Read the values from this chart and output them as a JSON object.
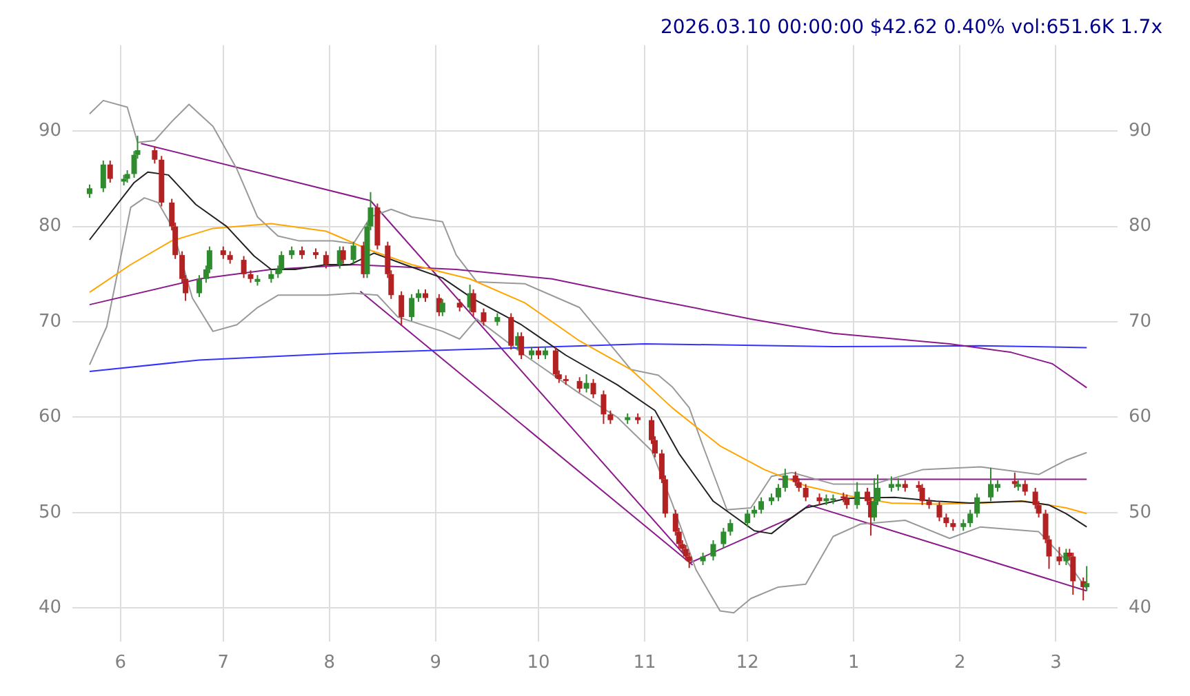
{
  "chart_data": {
    "type": "candlestick",
    "title": "2026.03.10 00:00:00 $42.62 0.40% vol:651.6K 1.7x",
    "x": [
      "2025-05-23",
      "2025-05-27",
      "2025-05-29",
      "2025-06-02",
      "2025-06-03",
      "2025-06-05",
      "2025-06-06",
      "2025-06-11",
      "2025-06-13",
      "2025-06-16",
      "2025-06-17",
      "2025-06-19",
      "2025-06-20",
      "2025-06-24",
      "2025-06-26",
      "2025-06-27",
      "2025-07-01",
      "2025-07-03",
      "2025-07-07",
      "2025-07-09",
      "2025-07-11",
      "2025-07-15",
      "2025-07-17",
      "2025-07-18",
      "2025-07-21",
      "2025-07-24",
      "2025-07-28",
      "2025-07-31",
      "2025-08-04",
      "2025-08-05",
      "2025-08-08",
      "2025-08-11",
      "2025-08-12",
      "2025-08-13",
      "2025-08-15",
      "2025-08-18",
      "2025-08-19",
      "2025-08-22",
      "2025-08-25",
      "2025-08-27",
      "2025-08-29",
      "2025-09-02",
      "2025-09-03",
      "2025-09-08",
      "2025-09-11",
      "2025-09-12",
      "2025-09-15",
      "2025-09-19",
      "2025-09-23",
      "2025-09-25",
      "2025-09-26",
      "2025-09-29",
      "2025-10-01",
      "2025-10-03",
      "2025-10-06",
      "2025-10-07",
      "2025-10-09",
      "2025-10-13",
      "2025-10-15",
      "2025-10-17",
      "2025-10-20",
      "2025-10-22",
      "2025-10-27",
      "2025-10-30",
      "2025-11-03",
      "2025-11-04",
      "2025-11-06",
      "2025-11-07",
      "2025-11-10",
      "2025-11-11",
      "2025-11-12",
      "2025-11-13",
      "2025-11-14",
      "2025-11-18",
      "2025-11-21",
      "2025-11-24",
      "2025-11-26",
      "2025-12-01",
      "2025-12-03",
      "2025-12-05",
      "2025-12-08",
      "2025-12-10",
      "2025-12-12",
      "2025-12-15",
      "2025-12-16",
      "2025-12-18",
      "2025-12-22",
      "2025-12-24",
      "2025-12-26",
      "2025-12-29",
      "2025-12-30",
      "2026-01-02",
      "2026-01-05",
      "2026-01-06",
      "2026-01-07",
      "2026-01-08",
      "2026-01-12",
      "2026-01-14",
      "2026-01-16",
      "2026-01-20",
      "2026-01-21",
      "2026-01-23",
      "2026-01-26",
      "2026-01-28",
      "2026-01-30",
      "2026-02-02",
      "2026-02-04",
      "2026-02-06",
      "2026-02-10",
      "2026-02-12",
      "2026-02-17",
      "2026-02-18",
      "2026-02-20",
      "2026-02-23",
      "2026-02-24",
      "2026-02-26",
      "2026-02-27",
      "2026-03-02",
      "2026-03-04",
      "2026-03-05",
      "2026-03-06",
      "2026-03-09",
      "2026-03-10"
    ],
    "ohlc": [
      [
        83.4,
        84.4,
        83.0,
        84
      ],
      [
        84,
        86.9,
        83.6,
        86.5
      ],
      [
        86.5,
        86.9,
        84.6,
        85
      ],
      [
        84.7,
        85.4,
        84.3,
        85
      ],
      [
        85,
        85.9,
        84.6,
        85.5
      ],
      [
        85.5,
        87.9,
        85.1,
        87.5
      ],
      [
        87.5,
        89.5,
        87.1,
        88
      ],
      [
        88,
        88.4,
        86.6,
        87
      ],
      [
        87,
        87.4,
        82.1,
        82.5
      ],
      [
        82.5,
        82.9,
        79.6,
        80
      ],
      [
        80,
        80.4,
        76.6,
        77
      ],
      [
        77,
        77.4,
        74.1,
        74.5
      ],
      [
        74.5,
        74.9,
        72.2,
        73
      ],
      [
        73,
        74.9,
        72.6,
        74.5
      ],
      [
        74.5,
        75.9,
        74.1,
        75.5
      ],
      [
        75.5,
        77.9,
        75.1,
        77.5
      ],
      [
        77.5,
        77.9,
        76.6,
        77
      ],
      [
        77,
        77.4,
        76.1,
        76.5
      ],
      [
        76.5,
        76.9,
        74.6,
        75
      ],
      [
        75,
        75.4,
        74.1,
        74.5
      ],
      [
        74.2,
        74.9,
        73.8,
        74.5
      ],
      [
        74.5,
        75.4,
        74.1,
        75
      ],
      [
        75,
        75.9,
        74.6,
        75.5
      ],
      [
        75.5,
        77.4,
        75.1,
        77
      ],
      [
        77,
        77.9,
        76.6,
        77.5
      ],
      [
        77.5,
        77.9,
        76.6,
        77
      ],
      [
        77.3,
        77.7,
        76.6,
        77
      ],
      [
        77,
        77.4,
        75.6,
        76
      ],
      [
        76,
        77.9,
        75.6,
        77.5
      ],
      [
        77.5,
        77.9,
        76.1,
        76.5
      ],
      [
        76.5,
        78.4,
        76.1,
        78
      ],
      [
        78,
        78.4,
        74.6,
        75
      ],
      [
        75,
        80.4,
        74.6,
        80
      ],
      [
        80,
        83.6,
        79.6,
        82
      ],
      [
        82,
        82.4,
        77.6,
        78
      ],
      [
        78,
        78.4,
        74.6,
        75
      ],
      [
        75,
        75.4,
        72.4,
        72.8
      ],
      [
        72.8,
        73.2,
        69.6,
        70.5
      ],
      [
        70.5,
        72.9,
        70.1,
        72.5
      ],
      [
        72.5,
        73.4,
        72.1,
        73
      ],
      [
        73,
        73.4,
        72.1,
        72.5
      ],
      [
        72.5,
        72.9,
        70.6,
        71
      ],
      [
        71,
        72.4,
        70.6,
        72
      ],
      [
        72,
        72.4,
        71.1,
        71.5
      ],
      [
        71.5,
        73.9,
        71.1,
        73
      ],
      [
        73,
        73.4,
        70.6,
        71
      ],
      [
        71,
        71.4,
        69.6,
        70
      ],
      [
        70,
        70.9,
        69.6,
        70.5
      ],
      [
        70.5,
        70.9,
        67.1,
        67.5
      ],
      [
        67.5,
        68.9,
        67.1,
        68.5
      ],
      [
        68.5,
        68.9,
        66.1,
        66.5
      ],
      [
        66.5,
        67.4,
        66.1,
        67
      ],
      [
        67,
        67.4,
        66.1,
        66.5
      ],
      [
        66.5,
        67.4,
        66.1,
        67
      ],
      [
        67,
        67.4,
        64.1,
        64.5
      ],
      [
        64.5,
        64.9,
        63.6,
        64
      ],
      [
        64,
        64.4,
        63.4,
        63.8
      ],
      [
        63.8,
        64.2,
        62.6,
        63
      ],
      [
        63,
        64.5,
        62.6,
        63.6
      ],
      [
        63.6,
        64,
        62,
        62.4
      ],
      [
        62.4,
        62.8,
        59.3,
        60.3
      ],
      [
        60.3,
        60.7,
        59.3,
        59.7
      ],
      [
        59.7,
        60.4,
        59.3,
        60
      ],
      [
        60,
        60.4,
        59.3,
        59.7
      ],
      [
        59.7,
        60.1,
        57.2,
        57.6
      ],
      [
        57.6,
        58,
        55.8,
        56.2
      ],
      [
        56.2,
        56.6,
        53.1,
        53.5
      ],
      [
        53.5,
        53.9,
        49.5,
        49.9
      ],
      [
        49.9,
        50.3,
        47.6,
        48
      ],
      [
        48,
        48.4,
        46.3,
        46.7
      ],
      [
        46.7,
        47.1,
        45.8,
        46.2
      ],
      [
        46.2,
        46.6,
        45,
        45.4
      ],
      [
        45.4,
        45.8,
        44.2,
        44.9
      ],
      [
        44.9,
        45.8,
        44.5,
        45.4
      ],
      [
        45.4,
        47.1,
        45,
        46.7
      ],
      [
        46.7,
        48.4,
        46.3,
        48
      ],
      [
        48,
        49.3,
        47.6,
        48.9
      ],
      [
        48.9,
        50.3,
        48.5,
        49.9
      ],
      [
        49.9,
        50.7,
        49.5,
        50.3
      ],
      [
        50.3,
        51.6,
        49.9,
        51.2
      ],
      [
        51.2,
        52,
        50.8,
        51.6
      ],
      [
        51.6,
        53,
        51.2,
        52.6
      ],
      [
        52.6,
        54.6,
        52.2,
        53.9
      ],
      [
        53.9,
        54.3,
        52.8,
        53.2
      ],
      [
        53.2,
        53.6,
        52.2,
        52.6
      ],
      [
        52.6,
        53,
        51.2,
        51.6
      ],
      [
        51.6,
        52,
        50.8,
        51.2
      ],
      [
        51.2,
        51.9,
        50.8,
        51.5
      ],
      [
        51.3,
        51.9,
        50.9,
        51.5
      ],
      [
        51.7,
        52.1,
        51.1,
        51.5
      ],
      [
        51.5,
        51.9,
        50.4,
        50.8
      ],
      [
        50.8,
        53.2,
        50.4,
        52.2
      ],
      [
        52.2,
        52.6,
        50.8,
        51.2
      ],
      [
        51.2,
        51.6,
        47.6,
        49.5
      ],
      [
        49.5,
        53.6,
        49.1,
        51.2
      ],
      [
        51.2,
        54,
        50.8,
        52.6
      ],
      [
        52.6,
        53.8,
        52.2,
        53
      ],
      [
        52.7,
        53.6,
        52.3,
        53
      ],
      [
        53,
        53.4,
        52.2,
        52.6
      ],
      [
        52.9,
        53.3,
        52.2,
        52.6
      ],
      [
        52.6,
        53,
        50.8,
        51.2
      ],
      [
        51.2,
        51.6,
        50.4,
        50.8
      ],
      [
        50.8,
        51.2,
        49.1,
        49.5
      ],
      [
        49.5,
        49.9,
        48.5,
        48.9
      ],
      [
        48.9,
        49.3,
        48.1,
        48.5
      ],
      [
        48.5,
        49.3,
        48.1,
        48.9
      ],
      [
        48.9,
        50.3,
        48.5,
        49.9
      ],
      [
        49.9,
        52,
        49.5,
        51.6
      ],
      [
        51.6,
        54.7,
        51.2,
        53
      ],
      [
        52.6,
        53.4,
        52.2,
        53
      ],
      [
        53.3,
        54.2,
        52.6,
        53
      ],
      [
        52.7,
        53.4,
        52.3,
        53
      ],
      [
        53,
        53.4,
        51.8,
        52.2
      ],
      [
        52.2,
        52.6,
        50.4,
        50.8
      ],
      [
        50.8,
        51.2,
        49.5,
        49.9
      ],
      [
        49.9,
        50.3,
        46.8,
        47.2
      ],
      [
        47.2,
        47.6,
        44.1,
        45.4
      ],
      [
        45.4,
        46.4,
        44.5,
        44.9
      ],
      [
        44.9,
        46.2,
        44.5,
        45.8
      ],
      [
        45.8,
        46.2,
        45,
        45.4
      ],
      [
        45.4,
        45.8,
        41.4,
        42.8
      ],
      [
        42.8,
        43.2,
        40.8,
        42.2
      ],
      [
        42.2,
        44.4,
        41.8,
        42.6
      ]
    ],
    "colors": [
      "#2e8b2e",
      "#2e8b2e",
      "#b22222",
      "#2e8b2e",
      "#2e8b2e",
      "#2e8b2e",
      "#2e8b2e",
      "#b22222",
      "#b22222",
      "#b22222",
      "#b22222",
      "#b22222",
      "#b22222",
      "#2e8b2e",
      "#2e8b2e",
      "#2e8b2e",
      "#b22222",
      "#b22222",
      "#b22222",
      "#b22222",
      "#2e8b2e",
      "#2e8b2e",
      "#2e8b2e",
      "#2e8b2e",
      "#2e8b2e",
      "#b22222",
      "#b22222",
      "#b22222",
      "#2e8b2e",
      "#b22222",
      "#2e8b2e",
      "#b22222",
      "#2e8b2e",
      "#2e8b2e",
      "#b22222",
      "#b22222",
      "#b22222",
      "#b22222",
      "#2e8b2e",
      "#2e8b2e",
      "#b22222",
      "#b22222",
      "#2e8b2e",
      "#b22222",
      "#2e8b2e",
      "#b22222",
      "#b22222",
      "#2e8b2e",
      "#b22222",
      "#2e8b2e",
      "#b22222",
      "#2e8b2e",
      "#b22222",
      "#2e8b2e",
      "#b22222",
      "#b22222",
      "#b22222",
      "#b22222",
      "#2e8b2e",
      "#b22222",
      "#b22222",
      "#b22222",
      "#2e8b2e",
      "#b22222",
      "#b22222",
      "#b22222",
      "#b22222",
      "#b22222",
      "#b22222",
      "#b22222",
      "#b22222",
      "#b22222",
      "#b22222",
      "#2e8b2e",
      "#2e8b2e",
      "#2e8b2e",
      "#2e8b2e",
      "#2e8b2e",
      "#2e8b2e",
      "#2e8b2e",
      "#2e8b2e",
      "#2e8b2e",
      "#2e8b2e",
      "#b22222",
      "#b22222",
      "#b22222",
      "#b22222",
      "#2e8b2e",
      "#2e8b2e",
      "#b22222",
      "#b22222",
      "#2e8b2e",
      "#b22222",
      "#b22222",
      "#2e8b2e",
      "#2e8b2e",
      "#2e8b2e",
      "#2e8b2e",
      "#b22222",
      "#b22222",
      "#b22222",
      "#b22222",
      "#b22222",
      "#b22222",
      "#b22222",
      "#2e8b2e",
      "#2e8b2e",
      "#2e8b2e",
      "#2e8b2e",
      "#2e8b2e",
      "#b22222",
      "#2e8b2e",
      "#b22222",
      "#b22222",
      "#b22222",
      "#b22222",
      "#b22222",
      "#b22222",
      "#2e8b2e",
      "#b22222",
      "#b22222",
      "#b22222",
      "#2e8b2e"
    ],
    "series": [
      {
        "type": "line",
        "color": "#222222",
        "x": [
          "2025-05-23",
          "2025-06-05",
          "2025-06-09",
          "2025-06-15",
          "2025-06-23",
          "2025-07-02",
          "2025-07-10",
          "2025-07-15",
          "2025-07-22",
          "2025-07-31",
          "2025-08-07",
          "2025-08-14",
          "2025-08-23",
          "2025-09-03",
          "2025-09-12",
          "2025-09-26",
          "2025-10-09",
          "2025-10-24",
          "2025-11-04",
          "2025-11-11",
          "2025-11-21",
          "2025-12-03",
          "2025-12-08",
          "2025-12-14",
          "2025-12-18",
          "2025-12-30",
          "2026-01-13",
          "2026-01-25",
          "2026-02-04",
          "2026-02-19",
          "2026-02-27",
          "2026-03-04",
          "2026-03-10"
        ],
        "values": [
          78.6,
          84.6,
          85.7,
          85.4,
          82.3,
          80,
          76.9,
          75.5,
          75.5,
          76,
          76,
          77.2,
          76,
          74.6,
          72.4,
          69.7,
          66.5,
          63.4,
          60.7,
          56.2,
          51.2,
          48.1,
          47.8,
          49.5,
          50.5,
          51.5,
          51.6,
          51.2,
          51,
          51.2,
          50.8,
          49.9,
          48.5
        ]
      },
      {
        "type": "line",
        "color": "#ffa500",
        "x": [
          "2025-05-23",
          "2025-06-04",
          "2025-06-16",
          "2025-06-28",
          "2025-07-15",
          "2025-07-31",
          "2025-08-13",
          "2025-08-25",
          "2025-09-11",
          "2025-09-27",
          "2025-10-13",
          "2025-10-28",
          "2025-11-09",
          "2025-11-23",
          "2025-12-06",
          "2025-12-18",
          "2025-12-30",
          "2026-01-12",
          "2026-01-25",
          "2026-02-07",
          "2026-02-20",
          "2026-03-04",
          "2026-03-10"
        ],
        "values": [
          73.1,
          76,
          78.5,
          79.8,
          80.3,
          79.5,
          77.5,
          76,
          74.5,
          72,
          68,
          65,
          61,
          57,
          54.5,
          52.8,
          51.8,
          51,
          50.9,
          51,
          51.2,
          50.5,
          49.9
        ]
      },
      {
        "type": "line",
        "color": "#8b1a8b",
        "x": [
          "2025-05-23",
          "2025-06-24",
          "2025-07-15",
          "2025-08-08",
          "2025-09-07",
          "2025-10-05",
          "2025-11-01",
          "2025-12-02",
          "2025-12-26",
          "2026-01-29",
          "2026-02-16",
          "2026-02-28",
          "2026-03-10"
        ],
        "values": [
          71.8,
          74.5,
          75.5,
          76,
          75.5,
          74.5,
          72.5,
          70.3,
          68.8,
          67.7,
          66.8,
          65.6,
          63.1
        ]
      },
      {
        "type": "line",
        "color": "#3333ff",
        "x": [
          "2025-05-23",
          "2025-06-24",
          "2025-08-04",
          "2025-09-27",
          "2025-11-01",
          "2025-12-26",
          "2026-02-07",
          "2026-03-10"
        ],
        "values": [
          64.8,
          66,
          66.7,
          67.3,
          67.7,
          67.4,
          67.5,
          67.3
        ]
      },
      {
        "type": "line",
        "color": "#999999",
        "x": [
          "2025-05-23",
          "2025-05-27",
          "2025-06-03",
          "2025-06-06",
          "2025-06-11",
          "2025-06-16",
          "2025-06-21",
          "2025-06-28",
          "2025-07-05",
          "2025-07-11",
          "2025-07-17",
          "2025-07-23",
          "2025-08-02",
          "2025-08-08",
          "2025-08-13",
          "2025-08-19",
          "2025-08-25",
          "2025-09-03",
          "2025-09-07",
          "2025-09-13",
          "2025-09-27",
          "2025-10-13",
          "2025-10-28",
          "2025-11-05",
          "2025-11-09",
          "2025-11-14",
          "2025-11-18",
          "2025-11-25",
          "2025-12-02",
          "2025-12-08",
          "2025-12-14",
          "2025-12-26",
          "2026-01-07",
          "2026-01-21",
          "2026-02-07",
          "2026-02-24",
          "2026-03-04",
          "2026-03-10"
        ],
        "values": [
          91.8,
          93.2,
          92.5,
          88.8,
          89,
          91,
          92.8,
          90.5,
          86,
          81,
          79,
          78.5,
          78.5,
          78.2,
          81,
          81.8,
          81,
          80.5,
          77,
          74.2,
          74,
          71.5,
          65,
          64.4,
          63.2,
          61,
          57,
          50.3,
          50.5,
          53.8,
          54.2,
          53,
          53,
          54.5,
          54.8,
          54,
          55.5,
          56.3
        ]
      },
      {
        "type": "line",
        "color": "#999999",
        "x": [
          "2025-05-23",
          "2025-05-28",
          "2025-06-04",
          "2025-06-08",
          "2025-06-12",
          "2025-06-16",
          "2025-06-22",
          "2025-06-28",
          "2025-07-05",
          "2025-07-11",
          "2025-07-17",
          "2025-07-31",
          "2025-08-08",
          "2025-08-15",
          "2025-08-21",
          "2025-09-03",
          "2025-09-08",
          "2025-09-13",
          "2025-09-27",
          "2025-10-13",
          "2025-10-24",
          "2025-11-03",
          "2025-11-09",
          "2025-11-16",
          "2025-11-23",
          "2025-11-27",
          "2025-12-02",
          "2025-12-10",
          "2025-12-18",
          "2025-12-26",
          "2026-01-03",
          "2026-01-16",
          "2026-01-29",
          "2026-02-07",
          "2026-02-24",
          "2026-03-04",
          "2026-03-10"
        ],
        "values": [
          65.5,
          69.5,
          82,
          83,
          82.5,
          80,
          72.5,
          69,
          69.7,
          71.5,
          72.8,
          72.8,
          73,
          72.8,
          70.5,
          69,
          68.2,
          70.3,
          66.5,
          62.5,
          60,
          56.5,
          51,
          44,
          39.7,
          39.5,
          41,
          42.2,
          42.5,
          47.5,
          48.8,
          49.2,
          47.3,
          48.5,
          48,
          45,
          42
        ]
      },
      {
        "type": "line",
        "color": "#8b1a8b",
        "x": [
          "2025-06-07",
          "2025-08-13",
          "2025-11-14"
        ],
        "values": [
          88.7,
          82.7,
          45
        ]
      },
      {
        "type": "line",
        "color": "#8b1a8b",
        "x": [
          "2025-08-10",
          "2025-11-15"
        ],
        "values": [
          73.2,
          44.5
        ]
      },
      {
        "type": "line",
        "color": "#8b1a8b",
        "x": [
          "2025-11-14",
          "2025-12-14",
          "2025-12-19",
          "2026-03-10"
        ],
        "values": [
          44.7,
          49.5,
          50.8,
          41.8
        ]
      },
      {
        "type": "line",
        "color": "#8b1a8b",
        "x": [
          "2025-12-10",
          "2026-03-10"
        ],
        "values": [
          53.5,
          53.5
        ]
      }
    ],
    "xlim": [
      "2025-05-18",
      "2026-03-19"
    ],
    "xticks": [
      {
        "value": "2025-06-01",
        "label": "6"
      },
      {
        "value": "2025-07-01",
        "label": "7"
      },
      {
        "value": "2025-08-01",
        "label": "8"
      },
      {
        "value": "2025-09-01",
        "label": "9"
      },
      {
        "value": "2025-10-01",
        "label": "10"
      },
      {
        "value": "2025-11-01",
        "label": "11"
      },
      {
        "value": "2025-12-01",
        "label": "12"
      },
      {
        "value": "2026-01-01",
        "label": "1"
      },
      {
        "value": "2026-02-01",
        "label": "2"
      },
      {
        "value": "2026-03-01",
        "label": "3"
      }
    ],
    "ylim": [
      36.5,
      99
    ],
    "yticks": [
      40,
      50,
      60,
      70,
      80,
      90
    ],
    "y2lim": [
      36.5,
      99
    ],
    "y2ticks": [
      40,
      50,
      60,
      70,
      80,
      90
    ],
    "grid": true
  }
}
